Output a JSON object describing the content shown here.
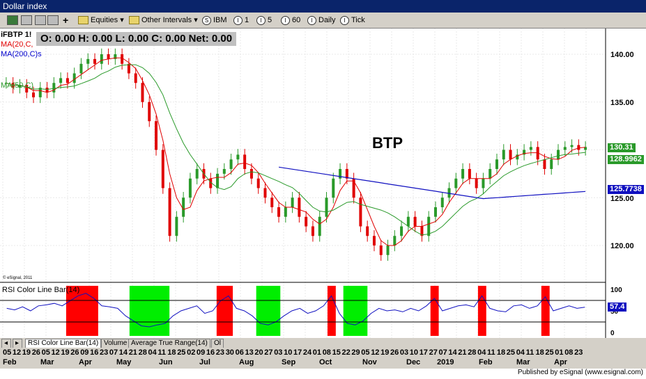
{
  "window": {
    "title": "Dollar index"
  },
  "toolbar": {
    "equities": "Equities",
    "other_intervals": "Other Intervals",
    "intervals": [
      {
        "icon": "S",
        "label": "IBM"
      },
      {
        "icon": "I",
        "label": "1"
      },
      {
        "icon": "I",
        "label": "5"
      },
      {
        "icon": "I",
        "label": "60"
      },
      {
        "icon": "I",
        "label": "Daily"
      },
      {
        "icon": "I",
        "label": "Tick"
      }
    ]
  },
  "chart": {
    "symbol": "iFBTP 1!",
    "ohlc": "O:  0.00   H:  0.00   L:  0.00   C:  0.00   Net:  0.00",
    "ma20": "MA(20,C,",
    "ma200": "MA(200,C)s",
    "ma50": "MA(50,C)",
    "annotation": "BTP",
    "copyright": "© eSignal, 2011",
    "price_ticks": [
      "140.00",
      "135.00",
      "125.00",
      "120.00"
    ],
    "price_tags": [
      {
        "label": "130.31",
        "color": "#2a9a2a"
      },
      {
        "label": "128.9962",
        "color": "#2a9a2a"
      },
      {
        "label": "125.7738",
        "color": "#1010c0"
      }
    ],
    "rsi_title": "RSI Color Line Bar(14)",
    "rsi_ticks": [
      "100",
      "50",
      "0"
    ],
    "rsi_tag": "57.4"
  },
  "tabs": [
    "RSI Color Line Bar(14)",
    "Volume",
    "Average True Range(14)",
    "Ol"
  ],
  "dates_top": [
    "05",
    "12",
    "19",
    "26",
    "05",
    "12",
    "19",
    "26",
    "09",
    "16",
    "23",
    "07",
    "14",
    "21",
    "28",
    "04",
    "11",
    "18",
    "25",
    "02",
    "09",
    "16",
    "23",
    "30",
    "06",
    "13",
    "20",
    "27",
    "03",
    "10",
    "17",
    "24",
    "01",
    "08",
    "15",
    "22",
    "29",
    "05",
    "12",
    "19",
    "26",
    "03",
    "10",
    "17",
    "27",
    "07",
    "14",
    "21",
    "28",
    "04",
    "11",
    "18",
    "25",
    "04",
    "11",
    "18",
    "25",
    "01",
    "08",
    "23"
  ],
  "months": [
    "Feb",
    "Mar",
    "Apr",
    "May",
    "Jun",
    "Jul",
    "Aug",
    "Sep",
    "Oct",
    "Nov",
    "Dec",
    "2019",
    "Feb",
    "Mar",
    "Apr"
  ],
  "footer": "Published by eSignal (www.esignal.com)",
  "chart_data": {
    "type": "candlestick",
    "title": "BTP",
    "ylim": [
      117,
      142
    ],
    "ma_series": [
      "MA(20,C,",
      "MA(200,C)s",
      "MA(50,C)"
    ],
    "close": [
      137,
      136.5,
      136.8,
      136,
      135.5,
      136.5,
      136,
      137,
      137.5,
      137,
      138,
      139,
      139.5,
      139,
      140,
      139.5,
      140,
      139,
      138,
      137,
      135,
      133,
      130,
      126,
      121,
      123,
      125,
      127,
      128,
      127,
      126,
      127.5,
      128,
      129,
      129.5,
      128,
      127,
      126,
      125,
      124,
      123,
      124,
      125,
      123,
      122,
      121,
      123,
      125,
      127,
      128,
      127,
      125,
      122,
      121,
      120,
      119,
      120,
      121,
      122,
      123,
      122,
      121,
      123,
      124,
      125,
      126,
      127,
      128,
      127,
      126,
      127,
      128,
      129,
      130,
      129,
      129.5,
      130,
      130.3,
      129,
      128,
      129,
      130,
      130.3,
      130.5,
      130,
      130.3
    ],
    "rsi": [
      55,
      52,
      58,
      50,
      60,
      62,
      65,
      60,
      70,
      80,
      85,
      75,
      60,
      58,
      55,
      40,
      30,
      20,
      18,
      22,
      25,
      40,
      50,
      55,
      60,
      45,
      50,
      70,
      80,
      55,
      50,
      40,
      25,
      22,
      28,
      40,
      50,
      55,
      45,
      50,
      60,
      80,
      45,
      25,
      22,
      30,
      45,
      55,
      50,
      52,
      48,
      55,
      50,
      60,
      75,
      50,
      55,
      60,
      62,
      58,
      80,
      55,
      50,
      48,
      60,
      62,
      55,
      60,
      78,
      50,
      55,
      60,
      55,
      57.4
    ],
    "rsi_ylim": [
      0,
      100
    ]
  }
}
